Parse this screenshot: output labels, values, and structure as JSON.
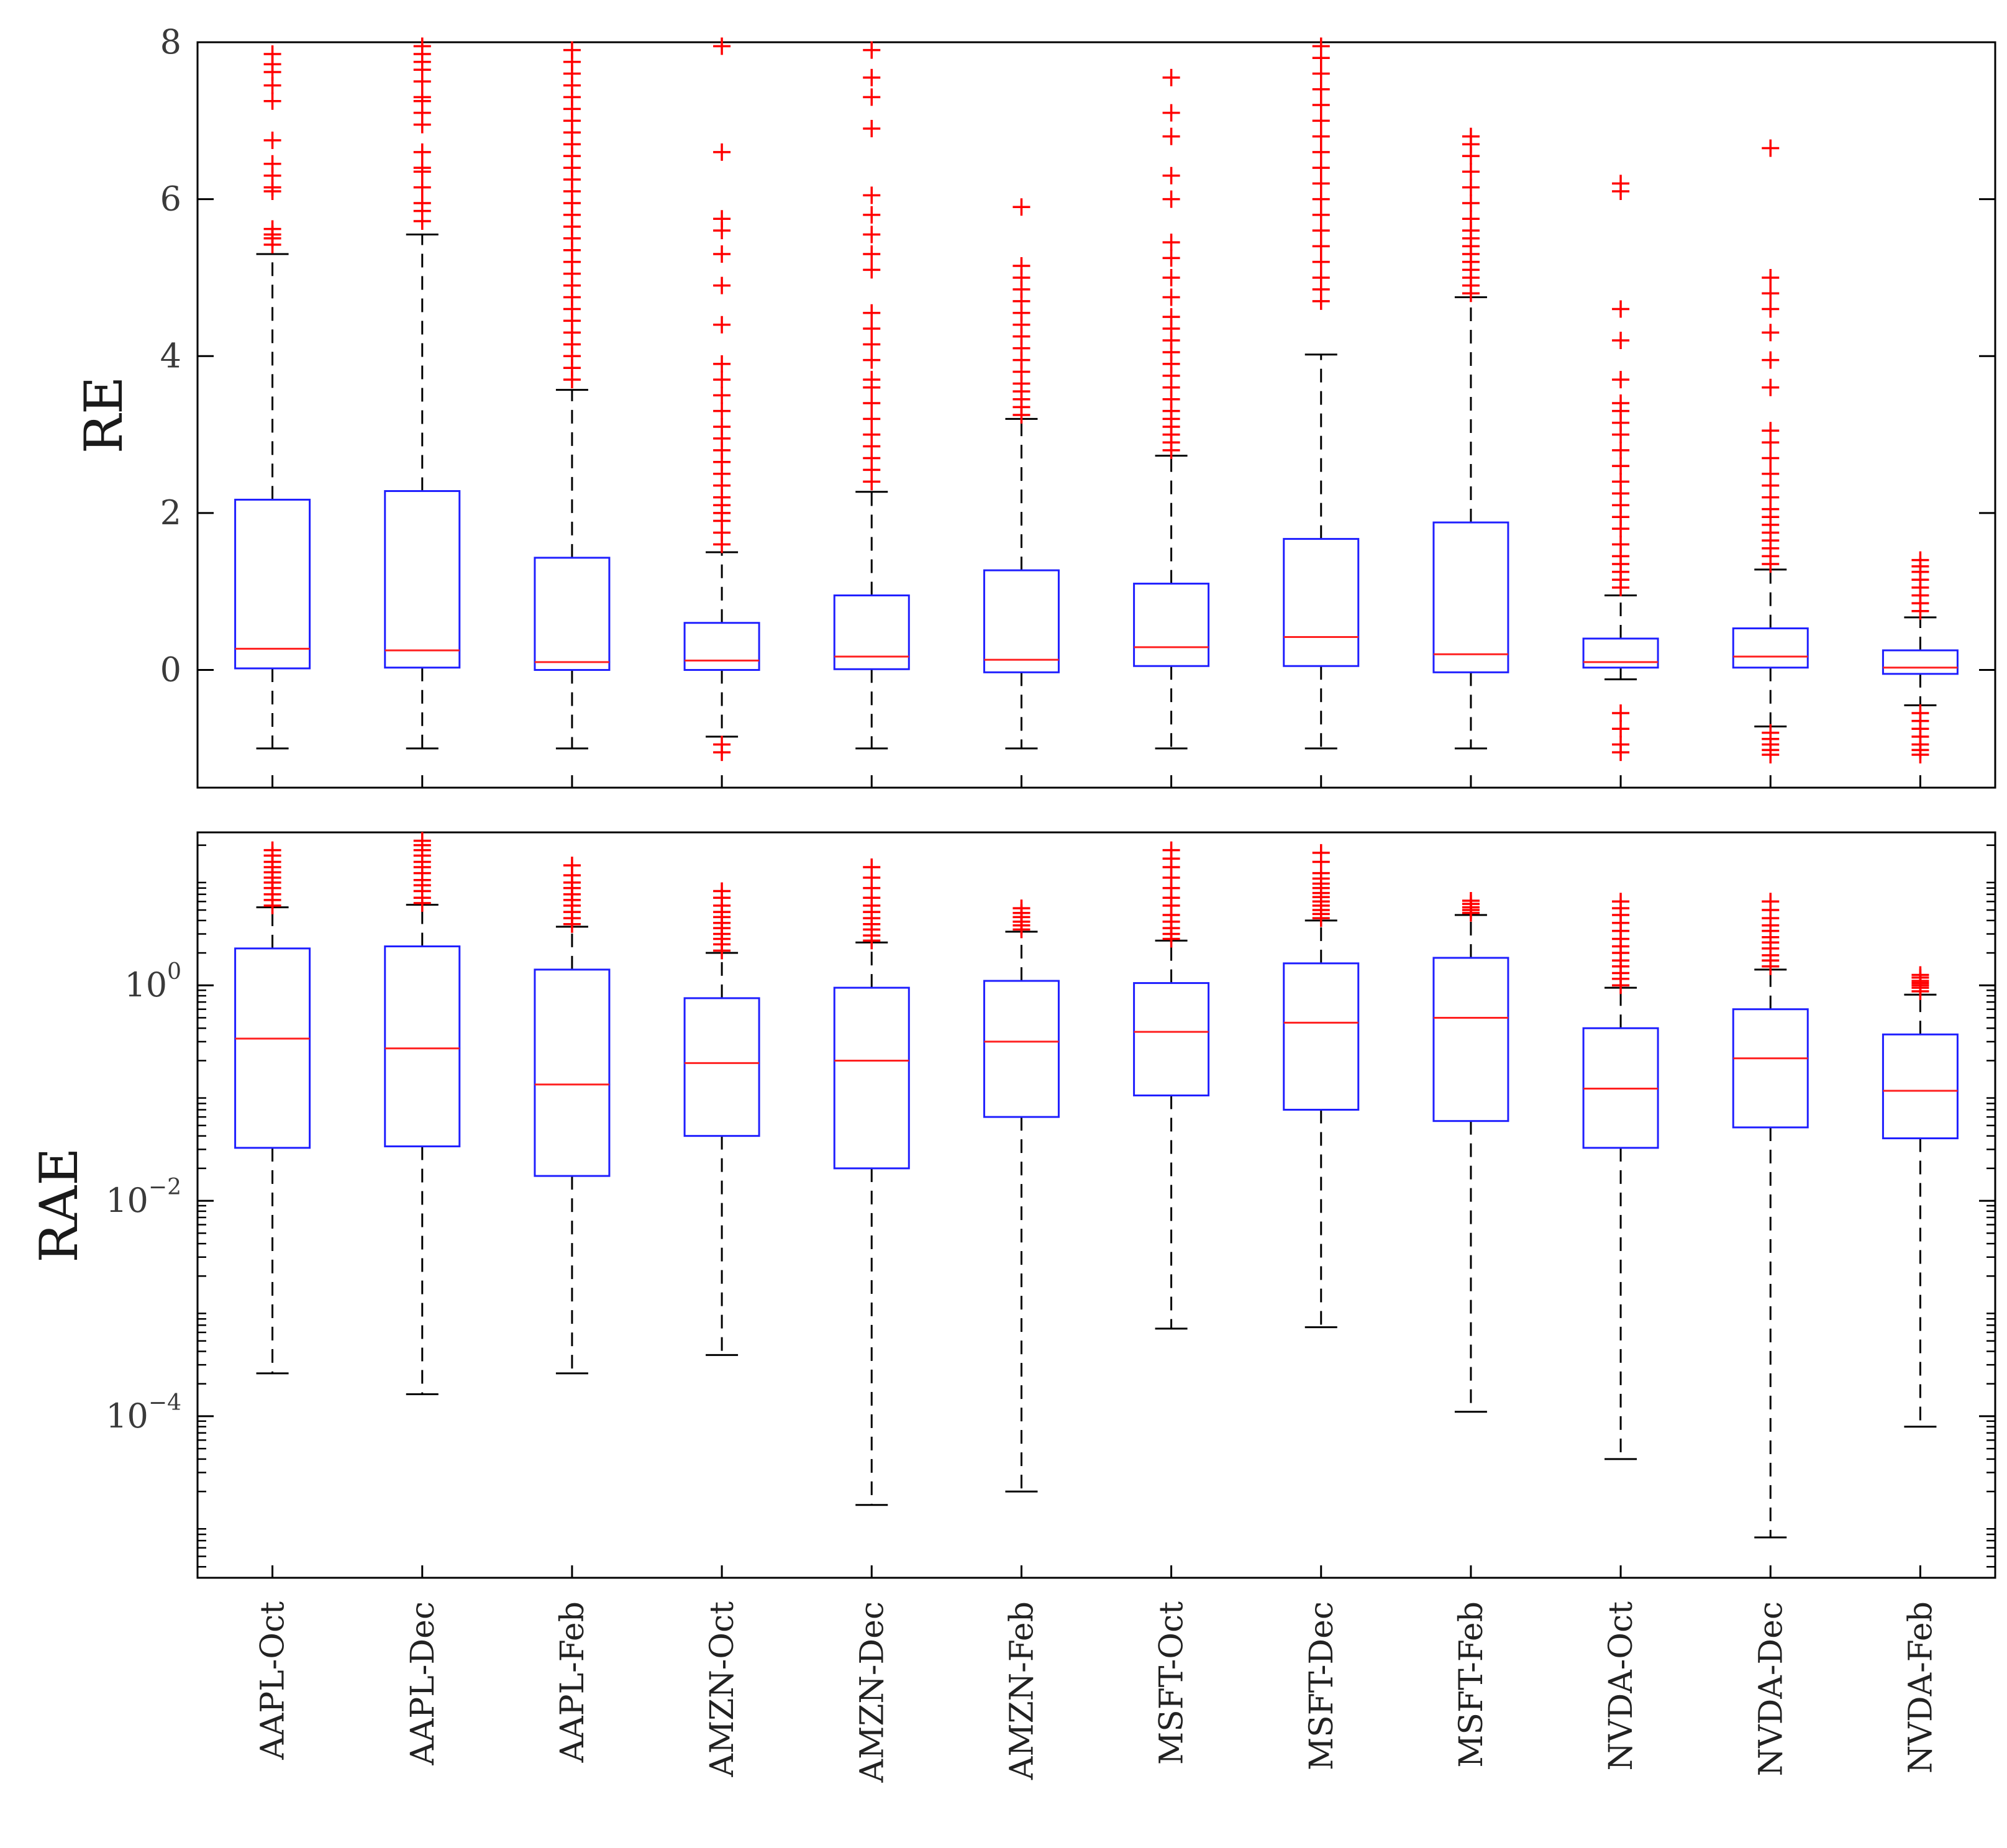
{
  "chart_data": [
    {
      "type": "boxplot",
      "ylabel": "RE",
      "yscale": "linear",
      "ylim": [
        -1.5,
        8
      ],
      "yticks": [
        {
          "value": 0,
          "label": "0"
        },
        {
          "value": 2,
          "label": "2"
        },
        {
          "value": 4,
          "label": "4"
        },
        {
          "value": 6,
          "label": "6"
        },
        {
          "value": 8,
          "label": "8"
        }
      ],
      "categories": [
        "AAPL-Oct",
        "AAPL-Dec",
        "AAPL-Feb",
        "AMZN-Oct",
        "AMZN-Dec",
        "AMZN-Feb",
        "MSFT-Oct",
        "MSFT-Dec",
        "MSFT-Feb",
        "NVDA-Oct",
        "NVDA-Dec",
        "NVDA-Feb"
      ],
      "boxes": [
        {
          "whisker_low": -1.0,
          "q1": 0.02,
          "median": 0.27,
          "q3": 2.17,
          "whisker_high": 5.3,
          "outliers_high": [
            5.42,
            5.5,
            5.55,
            5.62,
            6.1,
            6.15,
            6.3,
            6.45,
            6.75,
            7.25,
            7.45,
            7.62,
            7.72,
            7.85
          ]
        },
        {
          "whisker_low": -1.0,
          "q1": 0.03,
          "median": 0.25,
          "q3": 2.28,
          "whisker_high": 5.55,
          "outliers_high": [
            5.72,
            5.85,
            5.95,
            6.15,
            6.35,
            6.4,
            6.6,
            6.95,
            7.1,
            7.25,
            7.3,
            7.5,
            7.65,
            7.75,
            7.85,
            7.95
          ]
        },
        {
          "whisker_low": -1.0,
          "q1": 0.0,
          "median": 0.1,
          "q3": 1.43,
          "whisker_high": 3.57,
          "outliers_high": [
            3.7,
            3.85,
            4.0,
            4.15,
            4.3,
            4.45,
            4.6,
            4.75,
            4.9,
            5.05,
            5.2,
            5.35,
            5.5,
            5.65,
            5.8,
            5.95,
            6.1,
            6.25,
            6.4,
            6.55,
            6.7,
            6.85,
            7.0,
            7.15,
            7.3,
            7.45,
            7.6,
            7.75,
            7.9,
            8.0
          ]
        },
        {
          "whisker_low": -0.85,
          "q1": 0.0,
          "median": 0.12,
          "q3": 0.6,
          "whisker_high": 1.5,
          "outliers_high": [
            1.6,
            1.75,
            1.9,
            2.0,
            2.1,
            2.2,
            2.35,
            2.5,
            2.65,
            2.8,
            2.95,
            3.1,
            3.3,
            3.5,
            3.7,
            3.9,
            4.4,
            4.9,
            5.3,
            5.6,
            5.75,
            6.6,
            7.95
          ],
          "outliers_low": [
            -0.95,
            -1.05
          ]
        },
        {
          "whisker_low": -1.0,
          "q1": 0.01,
          "median": 0.17,
          "q3": 0.95,
          "whisker_high": 2.27,
          "outliers_high": [
            2.4,
            2.55,
            2.7,
            2.85,
            3.0,
            3.2,
            3.4,
            3.6,
            3.7,
            3.95,
            4.15,
            4.35,
            4.55,
            5.1,
            5.3,
            5.55,
            5.8,
            6.05,
            6.9,
            7.3,
            7.55,
            7.9
          ]
        },
        {
          "whisker_low": -1.0,
          "q1": -0.03,
          "median": 0.13,
          "q3": 1.27,
          "whisker_high": 3.2,
          "outliers_high": [
            3.25,
            3.35,
            3.45,
            3.55,
            3.65,
            3.8,
            3.95,
            4.1,
            4.25,
            4.4,
            4.55,
            4.7,
            4.85,
            5.0,
            5.15,
            5.9
          ]
        },
        {
          "whisker_low": -1.0,
          "q1": 0.05,
          "median": 0.29,
          "q3": 1.1,
          "whisker_high": 2.73,
          "outliers_high": [
            2.8,
            2.9,
            3.0,
            3.1,
            3.2,
            3.3,
            3.45,
            3.6,
            3.75,
            3.9,
            4.05,
            4.2,
            4.35,
            4.5,
            4.75,
            5.0,
            5.25,
            5.45,
            6.0,
            6.3,
            6.8,
            7.1,
            7.55
          ]
        },
        {
          "whisker_low": -1.0,
          "q1": 0.05,
          "median": 0.42,
          "q3": 1.67,
          "whisker_high": 4.02,
          "outliers_high": [
            4.7,
            4.85,
            5.0,
            5.2,
            5.4,
            5.6,
            5.8,
            6.0,
            6.2,
            6.4,
            6.6,
            6.8,
            7.0,
            7.2,
            7.4,
            7.6,
            7.8,
            7.95
          ]
        },
        {
          "whisker_low": -1.0,
          "q1": -0.03,
          "median": 0.2,
          "q3": 1.88,
          "whisker_high": 4.75,
          "outliers_high": [
            4.8,
            4.9,
            5.0,
            5.1,
            5.2,
            5.3,
            5.4,
            5.5,
            5.6,
            5.75,
            5.95,
            6.15,
            6.35,
            6.55,
            6.7,
            6.8
          ]
        },
        {
          "whisker_low": -0.12,
          "q1": 0.03,
          "median": 0.1,
          "q3": 0.4,
          "whisker_high": 0.95,
          "outliers_high": [
            1.05,
            1.15,
            1.25,
            1.35,
            1.45,
            1.6,
            1.8,
            1.95,
            2.1,
            2.25,
            2.4,
            2.6,
            2.8,
            3.0,
            3.15,
            3.3,
            3.4,
            3.7,
            4.2,
            4.6,
            6.1,
            6.2
          ],
          "outliers_low": [
            -0.55,
            -0.75,
            -0.95,
            -1.05
          ]
        },
        {
          "whisker_low": -0.72,
          "q1": 0.03,
          "median": 0.17,
          "q3": 0.53,
          "whisker_high": 1.28,
          "outliers_high": [
            1.35,
            1.45,
            1.55,
            1.65,
            1.75,
            1.85,
            1.95,
            2.05,
            2.2,
            2.35,
            2.5,
            2.7,
            2.9,
            3.05,
            3.6,
            3.95,
            4.3,
            4.6,
            4.8,
            5.0,
            6.65
          ],
          "outliers_low": [
            -0.8,
            -0.88,
            -0.95,
            -1.02,
            -1.08
          ]
        },
        {
          "whisker_low": -0.45,
          "q1": -0.05,
          "median": 0.03,
          "q3": 0.25,
          "whisker_high": 0.67,
          "outliers_high": [
            0.75,
            0.85,
            0.95,
            1.05,
            1.15,
            1.25,
            1.32,
            1.4
          ],
          "outliers_low": [
            -0.55,
            -0.65,
            -0.75,
            -0.85,
            -0.95,
            -1.02,
            -1.08
          ]
        }
      ]
    },
    {
      "type": "boxplot",
      "ylabel": "RAE",
      "yscale": "log",
      "ylim_log10": [
        -5.5,
        1.42
      ],
      "yticks": [
        {
          "exponent": 0,
          "base": "10",
          "exp_label": "0"
        },
        {
          "exponent": -2,
          "base": "10",
          "exp_label": "−2"
        },
        {
          "exponent": -4,
          "base": "10",
          "exp_label": "−4"
        }
      ],
      "categories": [
        "AAPL-Oct",
        "AAPL-Dec",
        "AAPL-Feb",
        "AMZN-Oct",
        "AMZN-Dec",
        "AMZN-Feb",
        "MSFT-Oct",
        "MSFT-Dec",
        "MSFT-Feb",
        "NVDA-Oct",
        "NVDA-Dec",
        "NVDA-Feb"
      ],
      "boxes": [
        {
          "whisker_low": 0.00025,
          "q1": 0.031,
          "median": 0.32,
          "q3": 2.2,
          "whisker_high": 5.3,
          "outliers_high": [
            5.5,
            6.2,
            7.0,
            8.0,
            9.0,
            10.0,
            11.2,
            12.5,
            14.0,
            16.0,
            18.0
          ]
        },
        {
          "whisker_low": 0.00016,
          "q1": 0.032,
          "median": 0.26,
          "q3": 2.3,
          "whisker_high": 5.6,
          "outliers_high": [
            5.8,
            6.5,
            7.5,
            8.5,
            9.5,
            11.0,
            12.5,
            14.0,
            16.0,
            18.0,
            20.0,
            22.0
          ]
        },
        {
          "whisker_low": 0.00025,
          "q1": 0.017,
          "median": 0.12,
          "q3": 1.4,
          "whisker_high": 3.5,
          "outliers_high": [
            3.7,
            4.2,
            4.8,
            5.5,
            6.2,
            7.0,
            8.0,
            9.0,
            10.5,
            13.0
          ]
        },
        {
          "whisker_low": 0.00037,
          "q1": 0.04,
          "median": 0.19,
          "q3": 0.76,
          "whisker_high": 2.0,
          "outliers_high": [
            2.1,
            2.4,
            2.7,
            3.0,
            3.4,
            3.8,
            4.3,
            4.8,
            5.5,
            6.5,
            7.5
          ]
        },
        {
          "whisker_low": 1.5e-05,
          "q1": 0.02,
          "median": 0.2,
          "q3": 0.95,
          "whisker_high": 2.5,
          "outliers_high": [
            2.6,
            2.9,
            3.3,
            3.7,
            4.2,
            4.8,
            5.5,
            6.5,
            8.0,
            10.0,
            12.5
          ]
        },
        {
          "whisker_low": 2e-05,
          "q1": 0.06,
          "median": 0.3,
          "q3": 1.1,
          "whisker_high": 3.15,
          "outliers_high": [
            3.3,
            3.6,
            3.9,
            4.3,
            4.7,
            5.2
          ]
        },
        {
          "whisker_low": 0.00065,
          "q1": 0.095,
          "median": 0.37,
          "q3": 1.05,
          "whisker_high": 2.6,
          "outliers_high": [
            2.7,
            3.0,
            3.4,
            3.9,
            4.5,
            5.5,
            6.5,
            8.0,
            10.0,
            12.5,
            15.0,
            18.0
          ]
        },
        {
          "whisker_low": 0.00067,
          "q1": 0.07,
          "median": 0.45,
          "q3": 1.6,
          "whisker_high": 4.0,
          "outliers_high": [
            4.2,
            4.6,
            5.0,
            5.5,
            6.0,
            6.6,
            7.2,
            8.0,
            8.8,
            9.8,
            11.0,
            14.0,
            17.0
          ]
        },
        {
          "whisker_low": 0.00011,
          "q1": 0.055,
          "median": 0.5,
          "q3": 1.8,
          "whisker_high": 4.5,
          "outliers_high": [
            4.7,
            5.0,
            5.3,
            5.7,
            6.1
          ]
        },
        {
          "whisker_low": 4e-05,
          "q1": 0.031,
          "median": 0.11,
          "q3": 0.4,
          "whisker_high": 0.95,
          "outliers_high": [
            1.0,
            1.15,
            1.3,
            1.5,
            1.7,
            2.0,
            2.3,
            2.7,
            3.2,
            3.8,
            4.5,
            5.2,
            6.0
          ]
        },
        {
          "whisker_low": 7.5e-06,
          "q1": 0.048,
          "median": 0.21,
          "q3": 0.6,
          "whisker_high": 1.4,
          "outliers_high": [
            1.5,
            1.7,
            1.9,
            2.2,
            2.5,
            2.8,
            3.2,
            3.6,
            4.2,
            5.0,
            6.0
          ]
        },
        {
          "whisker_low": 8e-05,
          "q1": 0.038,
          "median": 0.105,
          "q3": 0.35,
          "whisker_high": 0.82,
          "outliers_high": [
            0.88,
            0.95,
            1.0,
            1.05,
            1.1,
            1.18,
            1.25
          ]
        }
      ]
    }
  ]
}
